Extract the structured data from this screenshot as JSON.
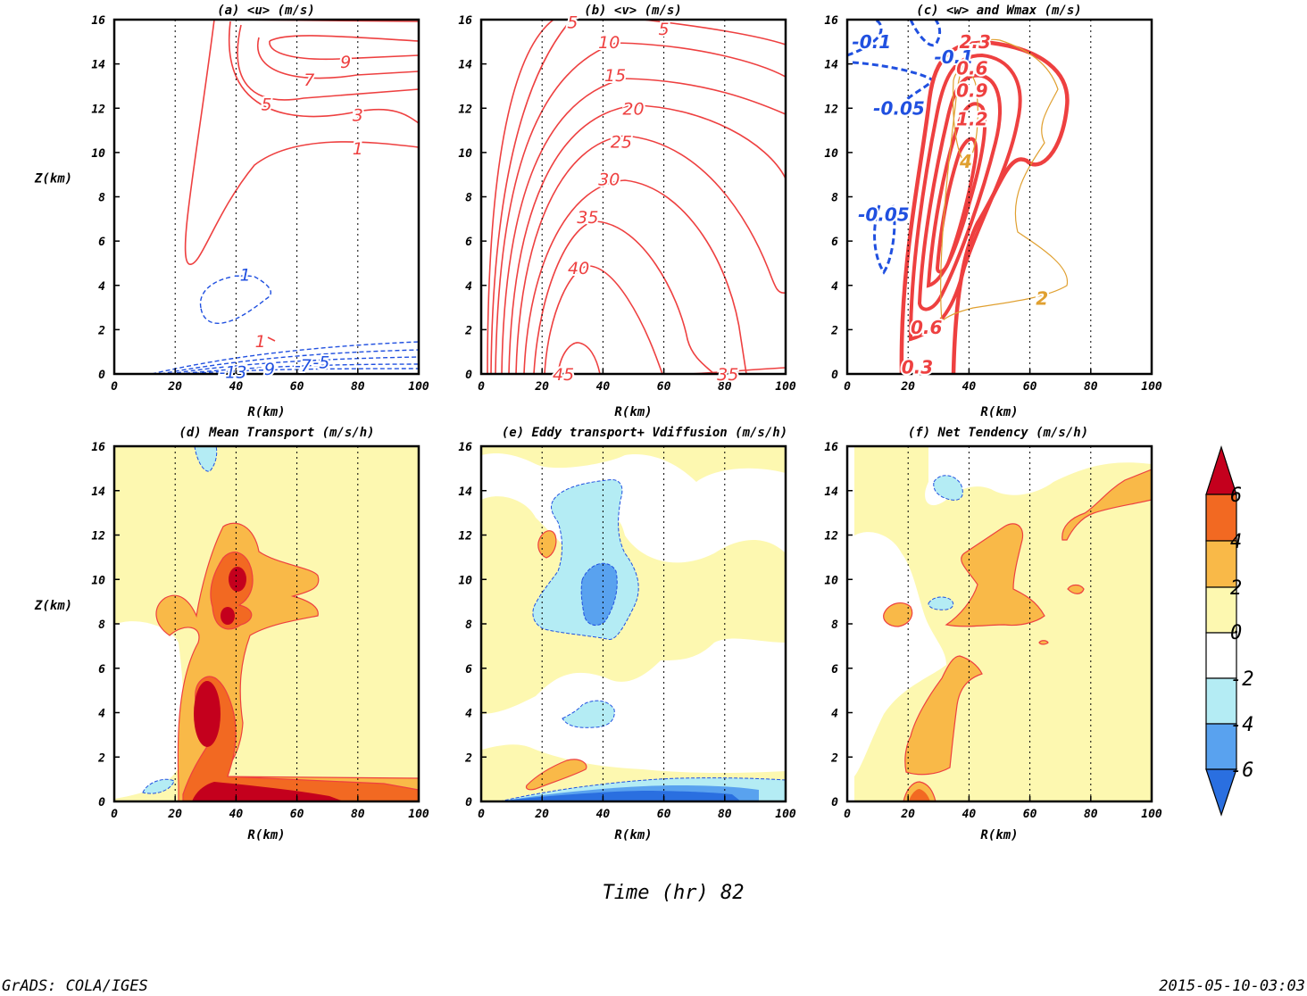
{
  "footer": {
    "left": "GrADS: COLA/IGES",
    "right": "2015-05-10-03:03",
    "time_label": "Time (hr) 82"
  },
  "colors": {
    "red_contour": "#ee4040",
    "blue_contour": "#2050e0",
    "orange_contour": "#e0a030",
    "levels_fill": [
      "#2a6fe0",
      "#59a2ef",
      "#b4ecf4",
      "#ffffff",
      "#fdf8b0",
      "#f9b948",
      "#f26922",
      "#c4001d"
    ]
  },
  "colorbar": {
    "labels": [
      "6",
      "4",
      "2",
      "0",
      "-2",
      "-4",
      "-6"
    ]
  },
  "chart_data": [
    {
      "panel": "a",
      "type": "contour",
      "title": "(a) <u> (m/s)",
      "xlabel": "R(km)",
      "ylabel": "Z(km)",
      "xlim": [
        0,
        100
      ],
      "ylim": [
        0,
        16
      ],
      "xticks": [
        "0",
        "20",
        "40",
        "60",
        "80",
        "100"
      ],
      "yticks": [
        "0",
        "2",
        "4",
        "6",
        "8",
        "10",
        "12",
        "14",
        "16"
      ],
      "contour_labels": [
        {
          "text": "9",
          "x": 76,
          "y": 14.1,
          "color": "red"
        },
        {
          "text": "7",
          "x": 64,
          "y": 13.3,
          "color": "red"
        },
        {
          "text": "5",
          "x": 50,
          "y": 12.2,
          "color": "red"
        },
        {
          "text": "3",
          "x": 80,
          "y": 11.7,
          "color": "red"
        },
        {
          "text": "1",
          "x": 80,
          "y": 10.2,
          "color": "red"
        },
        {
          "text": "-1",
          "x": 42,
          "y": 4.5,
          "color": "blue"
        },
        {
          "text": "1",
          "x": 48,
          "y": 1.5,
          "color": "red"
        },
        {
          "text": "-13",
          "x": 39,
          "y": 0.1,
          "color": "blue"
        },
        {
          "text": "-9",
          "x": 50,
          "y": 0.25,
          "color": "blue"
        },
        {
          "text": "-7",
          "x": 62,
          "y": 0.4,
          "color": "blue"
        },
        {
          "text": "-5",
          "x": 68,
          "y": 0.55,
          "color": "blue"
        }
      ]
    },
    {
      "panel": "b",
      "type": "contour",
      "title": "(b) <v> (m/s)",
      "xlabel": "R(km)",
      "ylabel": "",
      "xlim": [
        0,
        100
      ],
      "ylim": [
        0,
        16
      ],
      "xticks": [
        "0",
        "20",
        "40",
        "60",
        "80",
        "100"
      ],
      "yticks": [
        "0",
        "2",
        "4",
        "6",
        "8",
        "10",
        "12",
        "14",
        "16"
      ],
      "contour_labels": [
        {
          "text": "5",
          "x": 30,
          "y": 15.9,
          "color": "red"
        },
        {
          "text": "5",
          "x": 60,
          "y": 15.6,
          "color": "red"
        },
        {
          "text": "10",
          "x": 42,
          "y": 15.0,
          "color": "red"
        },
        {
          "text": "15",
          "x": 44,
          "y": 13.5,
          "color": "red"
        },
        {
          "text": "20",
          "x": 50,
          "y": 12.0,
          "color": "red"
        },
        {
          "text": "25",
          "x": 46,
          "y": 10.5,
          "color": "red"
        },
        {
          "text": "30",
          "x": 42,
          "y": 8.8,
          "color": "red"
        },
        {
          "text": "35",
          "x": 35,
          "y": 7.1,
          "color": "red"
        },
        {
          "text": "40",
          "x": 32,
          "y": 4.8,
          "color": "red"
        },
        {
          "text": "45",
          "x": 27,
          "y": 0.0,
          "color": "red"
        },
        {
          "text": "35",
          "x": 81,
          "y": 0.0,
          "color": "red"
        }
      ]
    },
    {
      "panel": "c",
      "type": "contour",
      "title": "(c) <w> and Wmax (m/s)",
      "xlabel": "R(km)",
      "ylabel": "",
      "xlim": [
        0,
        100
      ],
      "ylim": [
        0,
        16
      ],
      "xticks": [
        "0",
        "20",
        "40",
        "60",
        "80",
        "100"
      ],
      "yticks": [
        "0",
        "2",
        "4",
        "6",
        "8",
        "10",
        "12",
        "14",
        "16"
      ],
      "contour_labels": [
        {
          "text": "-0.1",
          "x": 8,
          "y": 15.0,
          "color": "blue"
        },
        {
          "text": "-0.1",
          "x": 35,
          "y": 14.3,
          "color": "blue"
        },
        {
          "text": "-0.05",
          "x": 17,
          "y": 12.0,
          "color": "blue"
        },
        {
          "text": "-0.05",
          "x": 12,
          "y": 7.2,
          "color": "blue"
        },
        {
          "text": "2.3",
          "x": 42,
          "y": 15.0,
          "color": "red"
        },
        {
          "text": "0.6",
          "x": 41,
          "y": 13.8,
          "color": "red"
        },
        {
          "text": "0.9",
          "x": 41,
          "y": 12.8,
          "color": "red"
        },
        {
          "text": "1.2",
          "x": 41,
          "y": 11.5,
          "color": "red"
        },
        {
          "text": "0.6",
          "x": 26,
          "y": 2.1,
          "color": "red"
        },
        {
          "text": "0.3",
          "x": 23,
          "y": 0.3,
          "color": "red"
        },
        {
          "text": "2",
          "x": 64,
          "y": 3.4,
          "color": "orange"
        },
        {
          "text": "4",
          "x": 39,
          "y": 9.6,
          "color": "orange"
        }
      ]
    },
    {
      "panel": "d",
      "type": "heatmap",
      "title": "(d) Mean Transport (m/s/h)",
      "xlabel": "R(km)",
      "ylabel": "Z(km)",
      "xlim": [
        0,
        100
      ],
      "ylim": [
        0,
        16
      ],
      "xticks": [
        "0",
        "20",
        "40",
        "60",
        "80",
        "100"
      ],
      "yticks": [
        "0",
        "2",
        "4",
        "6",
        "8",
        "10",
        "12",
        "14",
        "16"
      ]
    },
    {
      "panel": "e",
      "type": "heatmap",
      "title": "(e) Eddy transport+ Vdiffusion (m/s/h)",
      "xlabel": "R(km)",
      "ylabel": "",
      "xlim": [
        0,
        100
      ],
      "ylim": [
        0,
        16
      ],
      "xticks": [
        "0",
        "20",
        "40",
        "60",
        "80",
        "100"
      ],
      "yticks": [
        "0",
        "2",
        "4",
        "6",
        "8",
        "10",
        "12",
        "14",
        "16"
      ]
    },
    {
      "panel": "f",
      "type": "heatmap",
      "title": "(f) Net Tendency (m/s/h)",
      "xlabel": "R(km)",
      "ylabel": "",
      "xlim": [
        0,
        100
      ],
      "ylim": [
        0,
        16
      ],
      "xticks": [
        "0",
        "20",
        "40",
        "60",
        "80",
        "100"
      ],
      "yticks": [
        "0",
        "2",
        "4",
        "6",
        "8",
        "10",
        "12",
        "14",
        "16"
      ]
    }
  ]
}
